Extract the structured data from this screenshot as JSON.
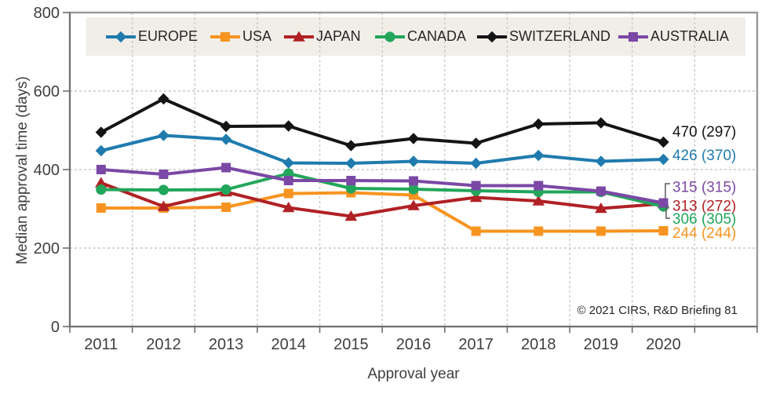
{
  "chart_data": {
    "type": "line",
    "title": "",
    "xlabel": "Approval year",
    "ylabel": "Median approval time (days)",
    "source": "© 2021 CIRS, R&D Briefing 81",
    "ylim": [
      0,
      800
    ],
    "yticks": [
      0,
      200,
      400,
      600,
      800
    ],
    "grid": "dashed",
    "legend_position": "top",
    "categories": [
      "2011",
      "2012",
      "2013",
      "2014",
      "2015",
      "2016",
      "2017",
      "2018",
      "2019",
      "2020"
    ],
    "series": [
      {
        "name": "EUROPE",
        "color": "#1F7BAE",
        "marker": "diamond",
        "values": [
          448,
          487,
          477,
          417,
          416,
          421,
          416,
          436,
          421,
          426
        ],
        "end_label": "426 (370)"
      },
      {
        "name": "USA",
        "color": "#F79421",
        "marker": "square",
        "values": [
          302,
          302,
          304,
          339,
          341,
          335,
          243,
          243,
          243,
          244
        ],
        "end_label": "244 (244)"
      },
      {
        "name": "JAPAN",
        "color": "#B02125",
        "marker": "triangle",
        "values": [
          366,
          306,
          343,
          303,
          281,
          308,
          329,
          320,
          301,
          313
        ],
        "end_label": "313 (272)"
      },
      {
        "name": "CANADA",
        "color": "#22A65B",
        "marker": "circle",
        "values": [
          349,
          348,
          349,
          390,
          352,
          350,
          346,
          343,
          343,
          306
        ],
        "end_label": "306 (305)"
      },
      {
        "name": "SWITZERLAND",
        "color": "#141414",
        "marker": "diamond",
        "values": [
          495,
          580,
          510,
          511,
          461,
          479,
          467,
          516,
          519,
          470
        ],
        "end_label": "470 (297)"
      },
      {
        "name": "AUSTRALIA",
        "color": "#7B48A5",
        "marker": "square",
        "values": [
          400,
          388,
          405,
          372,
          372,
          371,
          359,
          359,
          345,
          315
        ],
        "end_label": "315 (315)"
      }
    ],
    "colors": {
      "grid": "#C9C9C9",
      "border": "#999999",
      "axis": "#707070",
      "tick_text": "#3F3F3F",
      "legend_bg": "#F1EEE8"
    }
  }
}
